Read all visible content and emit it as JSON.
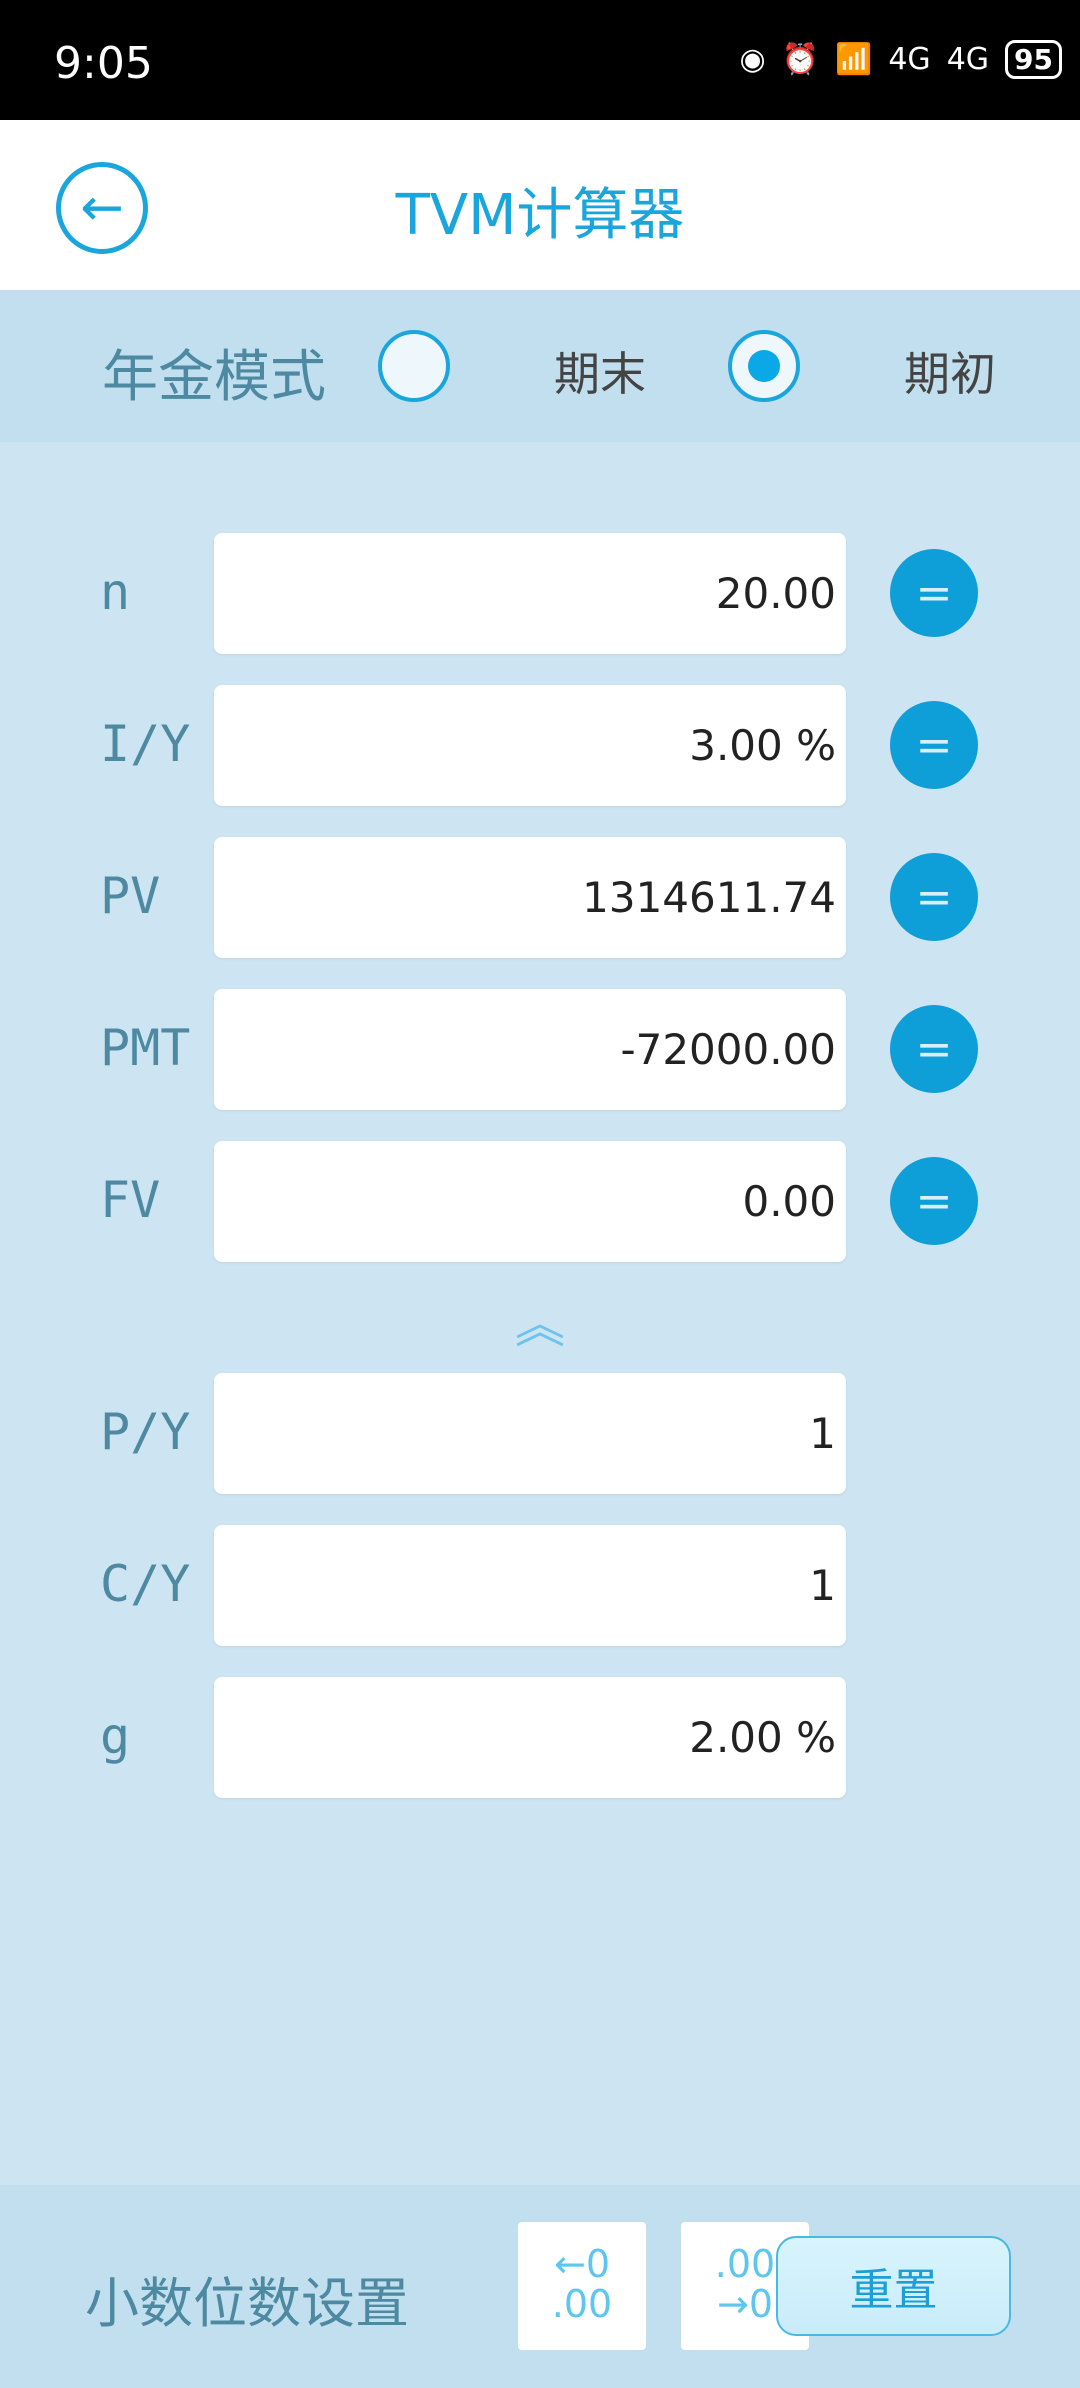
{
  "status": {
    "time": "9:05",
    "battery": "95",
    "network": "4G"
  },
  "header": {
    "title": "TVM计算器",
    "back_icon": "back-arrow-icon"
  },
  "mode": {
    "label": "年金模式",
    "options": [
      "期末",
      "期初"
    ],
    "selected": 1
  },
  "fields": [
    {
      "label": "n",
      "value": "20.00",
      "has_solve": true
    },
    {
      "label": "I/Y",
      "value": "3.00 %",
      "has_solve": true
    },
    {
      "label": "PV",
      "value": "1314611.74",
      "has_solve": true
    },
    {
      "label": "PMT",
      "value": "-72000.00",
      "has_solve": true
    },
    {
      "label": "FV",
      "value": "0.00",
      "has_solve": true
    }
  ],
  "solve_label": "=",
  "extra_fields": [
    {
      "label": "P/Y",
      "value": "1"
    },
    {
      "label": "C/Y",
      "value": "1"
    },
    {
      "label": "g",
      "value": "2.00 %"
    }
  ],
  "bottom": {
    "label": "小数位数设置",
    "dec_less_top": "←0",
    "dec_less_bottom": ".00",
    "dec_more_top": ".00",
    "dec_more_bottom": "→0",
    "reset": "重置"
  },
  "colors": {
    "accent": "#1aa6dc",
    "background": "#cde4f2",
    "bar": "#c2dfef"
  }
}
